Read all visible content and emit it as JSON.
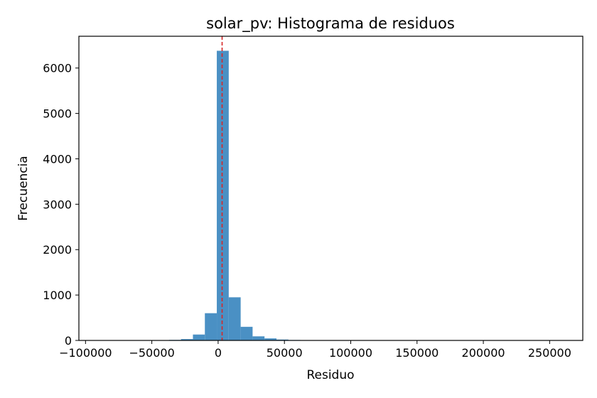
{
  "chart_data": {
    "type": "histogram",
    "title": "solar_pv: Histograma de residuos",
    "xlabel": "Residuo",
    "ylabel": "Frecuencia",
    "xlim": [
      -105000,
      275000
    ],
    "ylim": [
      0,
      6700
    ],
    "bar_color": "#4a90c4",
    "vline": {
      "x": 3000,
      "color": "#d62728",
      "style": "dashed"
    },
    "bins": [
      {
        "x0": -100000,
        "x1": -91000,
        "count": 1
      },
      {
        "x0": -91000,
        "x1": -82000,
        "count": 1
      },
      {
        "x0": -82000,
        "x1": -73000,
        "count": 2
      },
      {
        "x0": -73000,
        "x1": -64000,
        "count": 2
      },
      {
        "x0": -64000,
        "x1": -55000,
        "count": 3
      },
      {
        "x0": -55000,
        "x1": -46000,
        "count": 4
      },
      {
        "x0": -46000,
        "x1": -37000,
        "count": 6
      },
      {
        "x0": -37000,
        "x1": -28000,
        "count": 12
      },
      {
        "x0": -28000,
        "x1": -19000,
        "count": 30
      },
      {
        "x0": -19000,
        "x1": -10000,
        "count": 130
      },
      {
        "x0": -10000,
        "x1": -1000,
        "count": 600
      },
      {
        "x0": -1000,
        "x1": 8000,
        "count": 6380
      },
      {
        "x0": 8000,
        "x1": 17000,
        "count": 950
      },
      {
        "x0": 17000,
        "x1": 26000,
        "count": 300
      },
      {
        "x0": 26000,
        "x1": 35000,
        "count": 90
      },
      {
        "x0": 35000,
        "x1": 44000,
        "count": 45
      },
      {
        "x0": 44000,
        "x1": 53000,
        "count": 20
      },
      {
        "x0": 53000,
        "x1": 62000,
        "count": 10
      },
      {
        "x0": 62000,
        "x1": 71000,
        "count": 6
      },
      {
        "x0": 71000,
        "x1": 80000,
        "count": 4
      },
      {
        "x0": 80000,
        "x1": 89000,
        "count": 3
      },
      {
        "x0": 89000,
        "x1": 98000,
        "count": 2
      },
      {
        "x0": 98000,
        "x1": 107000,
        "count": 2
      },
      {
        "x0": 107000,
        "x1": 116000,
        "count": 1
      },
      {
        "x0": 116000,
        "x1": 125000,
        "count": 1
      },
      {
        "x0": 125000,
        "x1": 134000,
        "count": 1
      },
      {
        "x0": 134000,
        "x1": 143000,
        "count": 1
      },
      {
        "x0": 143000,
        "x1": 152000,
        "count": 1
      },
      {
        "x0": 152000,
        "x1": 161000,
        "count": 1
      },
      {
        "x0": 161000,
        "x1": 170000,
        "count": 1
      },
      {
        "x0": 170000,
        "x1": 179000,
        "count": 1
      },
      {
        "x0": 179000,
        "x1": 188000,
        "count": 1
      },
      {
        "x0": 188000,
        "x1": 197000,
        "count": 1
      },
      {
        "x0": 197000,
        "x1": 206000,
        "count": 1
      },
      {
        "x0": 206000,
        "x1": 215000,
        "count": 1
      },
      {
        "x0": 215000,
        "x1": 224000,
        "count": 1
      },
      {
        "x0": 224000,
        "x1": 233000,
        "count": 1
      },
      {
        "x0": 233000,
        "x1": 242000,
        "count": 1
      },
      {
        "x0": 242000,
        "x1": 251000,
        "count": 1
      },
      {
        "x0": 251000,
        "x1": 260000,
        "count": 1
      }
    ],
    "x_ticks": [
      {
        "value": -100000,
        "label": "−100000"
      },
      {
        "value": -50000,
        "label": "−50000"
      },
      {
        "value": 0,
        "label": "0"
      },
      {
        "value": 50000,
        "label": "50000"
      },
      {
        "value": 100000,
        "label": "100000"
      },
      {
        "value": 150000,
        "label": "150000"
      },
      {
        "value": 200000,
        "label": "200000"
      },
      {
        "value": 250000,
        "label": "250000"
      }
    ],
    "y_ticks": [
      {
        "value": 0,
        "label": "0"
      },
      {
        "value": 1000,
        "label": "1000"
      },
      {
        "value": 2000,
        "label": "2000"
      },
      {
        "value": 3000,
        "label": "3000"
      },
      {
        "value": 4000,
        "label": "4000"
      },
      {
        "value": 5000,
        "label": "5000"
      },
      {
        "value": 6000,
        "label": "6000"
      }
    ],
    "grid": false,
    "legend": "none"
  }
}
